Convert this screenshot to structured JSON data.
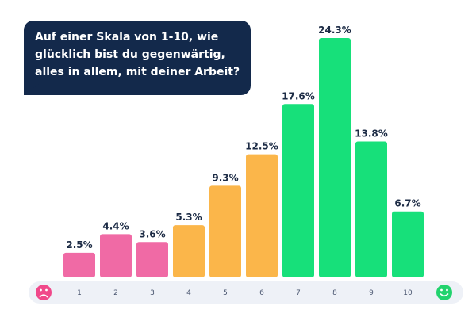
{
  "question": {
    "lines": [
      "Auf einer Skala von 1-10, wie",
      "glücklich bist du gegenwärtig,",
      "alles in allem, mit deiner Arbeit?"
    ]
  },
  "chart_data": {
    "type": "bar",
    "title": "Auf einer Skala von 1-10, wie glücklich bist du gegenwärtig, alles in allem, mit deiner Arbeit?",
    "categories": [
      "1",
      "2",
      "3",
      "4",
      "5",
      "6",
      "7",
      "8",
      "9",
      "10"
    ],
    "values": [
      2.5,
      4.4,
      3.6,
      5.3,
      9.3,
      12.5,
      17.6,
      24.3,
      13.8,
      6.7
    ],
    "value_labels": [
      "2.5%",
      "4.4%",
      "3.6%",
      "5.3%",
      "9.3%",
      "12.5%",
      "17.6%",
      "24.3%",
      "13.8%",
      "6.7%"
    ],
    "bar_groups": [
      "low",
      "low",
      "low",
      "mid",
      "mid",
      "mid",
      "high",
      "high",
      "high",
      "high"
    ],
    "ylim": [
      0,
      24.3
    ],
    "xlabel": "",
    "ylabel": "",
    "grid": false,
    "scale_ends": {
      "left": "sad-face",
      "right": "happy-face"
    }
  },
  "colors": {
    "low": "#f06aa5",
    "mid": "#fbb64a",
    "high": "#17e07a",
    "sad": "#f0488a",
    "happy": "#22d36e",
    "track": "#eef1f7",
    "bubble": "#13294b"
  }
}
